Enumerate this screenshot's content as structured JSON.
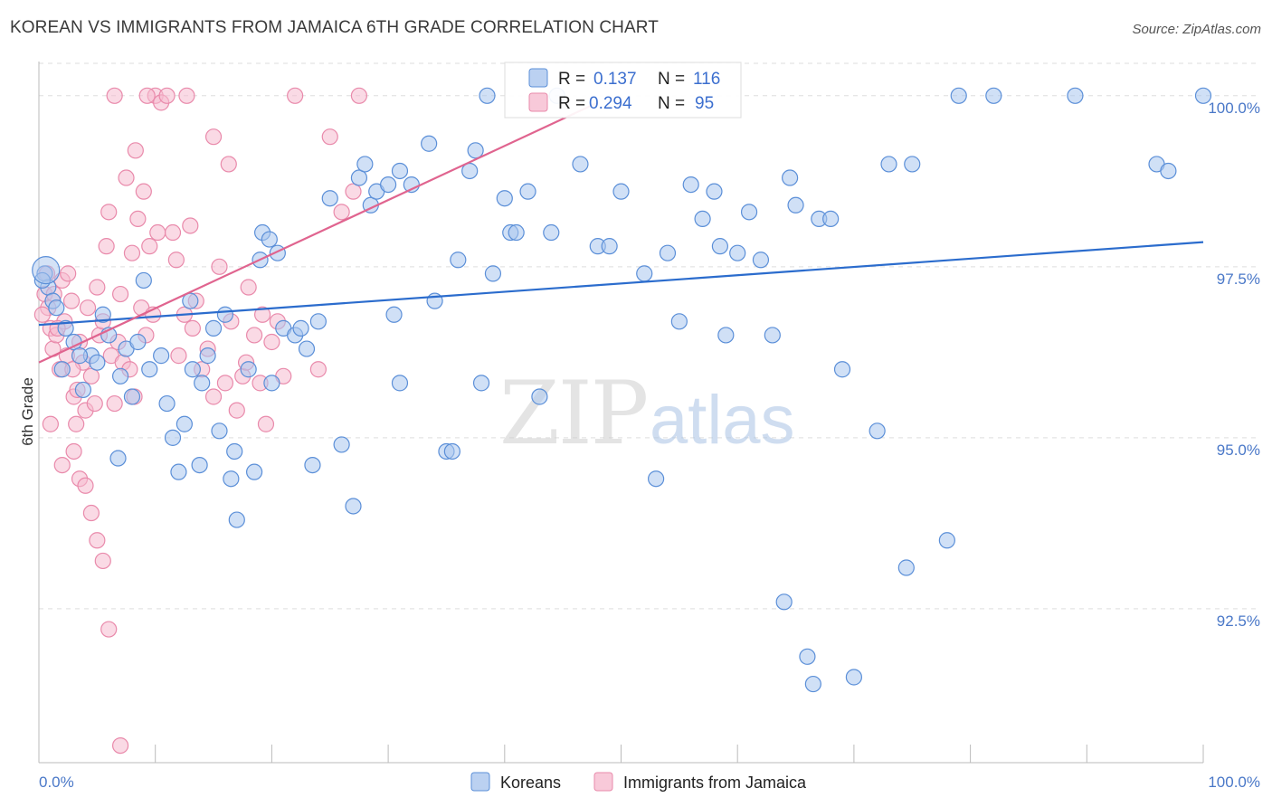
{
  "title": "KOREAN VS IMMIGRANTS FROM JAMAICA 6TH GRADE CORRELATION CHART",
  "source": "Source: ZipAtlas.com",
  "watermark": {
    "zip": "ZIP",
    "atlas": "atlas"
  },
  "colors": {
    "koreans_fill": "#aac6ee",
    "koreans_stroke": "#5b8fd8",
    "koreans_line": "#2b6ccd",
    "jamaica_fill": "#f6bcd0",
    "jamaica_stroke": "#e98aab",
    "jamaica_line": "#e0648f",
    "tick_text": "#4a78c8",
    "grid": "#dddddd"
  },
  "stats_box": {
    "rows": [
      {
        "r_label": "R =",
        "r_value": "0.137",
        "n_label": "N =",
        "n_value": "116"
      },
      {
        "r_label": "R =",
        "r_value": "0.294",
        "n_label": "N =",
        "n_value": "95"
      }
    ]
  },
  "chart_data": {
    "type": "scatter",
    "title": "KOREAN VS IMMIGRANTS FROM JAMAICA 6TH GRADE CORRELATION CHART",
    "xlabel": "",
    "ylabel": "6th Grade",
    "xlim": [
      0,
      100
    ],
    "ylim": [
      90.25,
      100.5
    ],
    "x_tick_labels": [
      "0.0%",
      "100.0%"
    ],
    "y_ticks": [
      100.0,
      97.5,
      95.0,
      92.5
    ],
    "y_tick_labels": [
      "100.0%",
      "97.5%",
      "95.0%",
      "92.5%"
    ],
    "grid": true,
    "legend_position": "bottom-center",
    "series": [
      {
        "name": "Koreans",
        "r": 0.137,
        "n": 116,
        "trend": {
          "x": [
            0,
            100
          ],
          "y": [
            96.65,
            97.86
          ]
        },
        "points": [
          [
            0.5,
            97.4
          ],
          [
            0.8,
            97.2
          ],
          [
            1.2,
            97.0
          ],
          [
            2.0,
            96.0
          ],
          [
            2.3,
            96.6
          ],
          [
            3.0,
            96.4
          ],
          [
            3.8,
            95.7
          ],
          [
            4.5,
            96.2
          ],
          [
            5.0,
            96.1
          ],
          [
            6.0,
            96.5
          ],
          [
            7.0,
            95.9
          ],
          [
            7.5,
            96.3
          ],
          [
            8.0,
            95.6
          ],
          [
            9.0,
            97.3
          ],
          [
            10.5,
            96.2
          ],
          [
            11.0,
            95.5
          ],
          [
            11.5,
            95.0
          ],
          [
            12.5,
            95.2
          ],
          [
            13.0,
            97.0
          ],
          [
            13.2,
            96.0
          ],
          [
            14.0,
            95.8
          ],
          [
            14.5,
            96.2
          ],
          [
            15.0,
            96.6
          ],
          [
            15.5,
            95.1
          ],
          [
            16.0,
            96.8
          ],
          [
            16.5,
            94.4
          ],
          [
            17.0,
            93.8
          ],
          [
            18.0,
            96.0
          ],
          [
            19.0,
            97.6
          ],
          [
            19.2,
            98.0
          ],
          [
            19.8,
            97.9
          ],
          [
            20.0,
            95.8
          ],
          [
            20.5,
            97.7
          ],
          [
            21.0,
            96.6
          ],
          [
            22.0,
            96.5
          ],
          [
            22.5,
            96.6
          ],
          [
            23.0,
            96.3
          ],
          [
            23.5,
            94.6
          ],
          [
            24.0,
            96.7
          ],
          [
            25.0,
            98.5
          ],
          [
            26.0,
            94.9
          ],
          [
            27.0,
            94.0
          ],
          [
            27.5,
            98.8
          ],
          [
            28.0,
            99.0
          ],
          [
            28.5,
            98.4
          ],
          [
            29.0,
            98.6
          ],
          [
            30.0,
            98.7
          ],
          [
            30.5,
            96.8
          ],
          [
            31.0,
            98.9
          ],
          [
            32.0,
            98.7
          ],
          [
            33.5,
            99.3
          ],
          [
            34.0,
            97.0
          ],
          [
            35.0,
            94.8
          ],
          [
            35.5,
            94.8
          ],
          [
            36.0,
            97.6
          ],
          [
            37.0,
            98.9
          ],
          [
            37.5,
            99.2
          ],
          [
            38.0,
            95.8
          ],
          [
            39.0,
            97.4
          ],
          [
            40.0,
            98.5
          ],
          [
            40.5,
            98.0
          ],
          [
            41.0,
            98.0
          ],
          [
            42.0,
            98.6
          ],
          [
            43.0,
            95.6
          ],
          [
            44.0,
            98.0
          ],
          [
            44.5,
            100.0
          ],
          [
            46.5,
            99.0
          ],
          [
            48.0,
            97.8
          ],
          [
            49.0,
            97.8
          ],
          [
            50.0,
            98.6
          ],
          [
            52.0,
            97.4
          ],
          [
            53.0,
            94.4
          ],
          [
            54.0,
            97.7
          ],
          [
            55.0,
            96.7
          ],
          [
            56.0,
            98.7
          ],
          [
            57.0,
            98.2
          ],
          [
            58.0,
            98.6
          ],
          [
            58.5,
            97.8
          ],
          [
            59.0,
            96.5
          ],
          [
            60.0,
            97.7
          ],
          [
            61.0,
            98.3
          ],
          [
            62.0,
            97.6
          ],
          [
            63.0,
            96.5
          ],
          [
            64.0,
            92.6
          ],
          [
            64.5,
            98.8
          ],
          [
            65.0,
            98.4
          ],
          [
            66.0,
            91.8
          ],
          [
            66.5,
            91.4
          ],
          [
            67.0,
            98.2
          ],
          [
            68.0,
            98.2
          ],
          [
            69.0,
            96.0
          ],
          [
            70.0,
            91.5
          ],
          [
            72.0,
            95.1
          ],
          [
            73.0,
            99.0
          ],
          [
            74.5,
            93.1
          ],
          [
            75.0,
            99.0
          ],
          [
            78.0,
            93.5
          ],
          [
            79.0,
            100.0
          ],
          [
            82.0,
            100.0
          ],
          [
            96.0,
            99.0
          ],
          [
            97.0,
            98.9
          ],
          [
            1.5,
            96.9
          ],
          [
            0.3,
            97.3
          ],
          [
            3.5,
            96.2
          ],
          [
            5.5,
            96.8
          ],
          [
            8.5,
            96.4
          ],
          [
            9.5,
            96.0
          ],
          [
            12.0,
            94.5
          ],
          [
            13.8,
            94.6
          ],
          [
            16.8,
            94.8
          ],
          [
            18.5,
            94.5
          ],
          [
            6.8,
            94.7
          ],
          [
            100.0,
            100.0
          ],
          [
            89.0,
            100.0
          ],
          [
            38.5,
            100.0
          ],
          [
            31.0,
            95.8
          ]
        ]
      },
      {
        "name": "Immigrants from Jamaica",
        "r": 0.294,
        "n": 95,
        "trend": {
          "x": [
            0,
            48
          ],
          "y": [
            96.1,
            99.9
          ]
        },
        "points": [
          [
            0.5,
            97.1
          ],
          [
            0.8,
            96.9
          ],
          [
            1.0,
            96.6
          ],
          [
            1.2,
            96.3
          ],
          [
            1.5,
            96.5
          ],
          [
            1.8,
            96.0
          ],
          [
            2.0,
            97.3
          ],
          [
            2.2,
            96.7
          ],
          [
            2.5,
            97.4
          ],
          [
            2.8,
            97.0
          ],
          [
            3.0,
            95.6
          ],
          [
            3.2,
            95.2
          ],
          [
            3.5,
            96.4
          ],
          [
            3.8,
            96.1
          ],
          [
            4.0,
            95.4
          ],
          [
            4.2,
            96.9
          ],
          [
            4.5,
            95.9
          ],
          [
            4.8,
            95.5
          ],
          [
            5.0,
            97.2
          ],
          [
            5.2,
            96.5
          ],
          [
            5.5,
            96.7
          ],
          [
            5.8,
            97.8
          ],
          [
            6.0,
            98.3
          ],
          [
            6.2,
            96.2
          ],
          [
            6.5,
            95.5
          ],
          [
            6.8,
            96.4
          ],
          [
            7.0,
            97.1
          ],
          [
            7.2,
            96.1
          ],
          [
            7.5,
            98.8
          ],
          [
            7.8,
            96.0
          ],
          [
            8.0,
            97.7
          ],
          [
            8.2,
            95.6
          ],
          [
            8.5,
            98.2
          ],
          [
            8.8,
            96.9
          ],
          [
            9.0,
            98.6
          ],
          [
            9.2,
            96.5
          ],
          [
            9.5,
            97.8
          ],
          [
            9.8,
            96.8
          ],
          [
            10.0,
            100.0
          ],
          [
            10.2,
            98.0
          ],
          [
            10.5,
            99.9
          ],
          [
            11.0,
            100.0
          ],
          [
            11.5,
            98.0
          ],
          [
            12.0,
            96.2
          ],
          [
            12.5,
            96.8
          ],
          [
            13.0,
            98.1
          ],
          [
            13.5,
            97.0
          ],
          [
            14.0,
            96.0
          ],
          [
            14.5,
            96.3
          ],
          [
            15.0,
            95.6
          ],
          [
            15.5,
            97.5
          ],
          [
            16.0,
            95.8
          ],
          [
            16.5,
            96.7
          ],
          [
            17.0,
            95.4
          ],
          [
            17.5,
            95.9
          ],
          [
            18.0,
            97.2
          ],
          [
            18.5,
            96.5
          ],
          [
            19.0,
            95.8
          ],
          [
            19.5,
            95.2
          ],
          [
            20.0,
            96.4
          ],
          [
            20.5,
            96.7
          ],
          [
            21.0,
            95.9
          ],
          [
            22.0,
            100.0
          ],
          [
            24.0,
            96.0
          ],
          [
            25.0,
            99.4
          ],
          [
            26.0,
            98.3
          ],
          [
            27.0,
            98.6
          ],
          [
            27.5,
            100.0
          ],
          [
            1.0,
            95.2
          ],
          [
            2.0,
            94.6
          ],
          [
            3.0,
            94.8
          ],
          [
            3.5,
            94.4
          ],
          [
            4.0,
            94.3
          ],
          [
            4.5,
            93.9
          ],
          [
            5.0,
            93.5
          ],
          [
            5.5,
            93.2
          ],
          [
            6.0,
            92.2
          ],
          [
            7.0,
            90.5
          ],
          [
            0.3,
            96.8
          ],
          [
            0.7,
            97.4
          ],
          [
            1.3,
            97.1
          ],
          [
            1.6,
            96.6
          ],
          [
            2.4,
            96.2
          ],
          [
            2.9,
            96.0
          ],
          [
            3.3,
            95.7
          ],
          [
            6.5,
            100.0
          ],
          [
            9.3,
            100.0
          ],
          [
            12.7,
            100.0
          ],
          [
            15.0,
            99.4
          ],
          [
            16.3,
            99.0
          ],
          [
            8.3,
            99.2
          ],
          [
            11.8,
            97.6
          ],
          [
            13.2,
            96.6
          ],
          [
            17.8,
            96.1
          ],
          [
            19.2,
            96.8
          ]
        ]
      }
    ]
  },
  "legend": {
    "items": [
      "Koreans",
      "Immigrants from Jamaica"
    ]
  }
}
